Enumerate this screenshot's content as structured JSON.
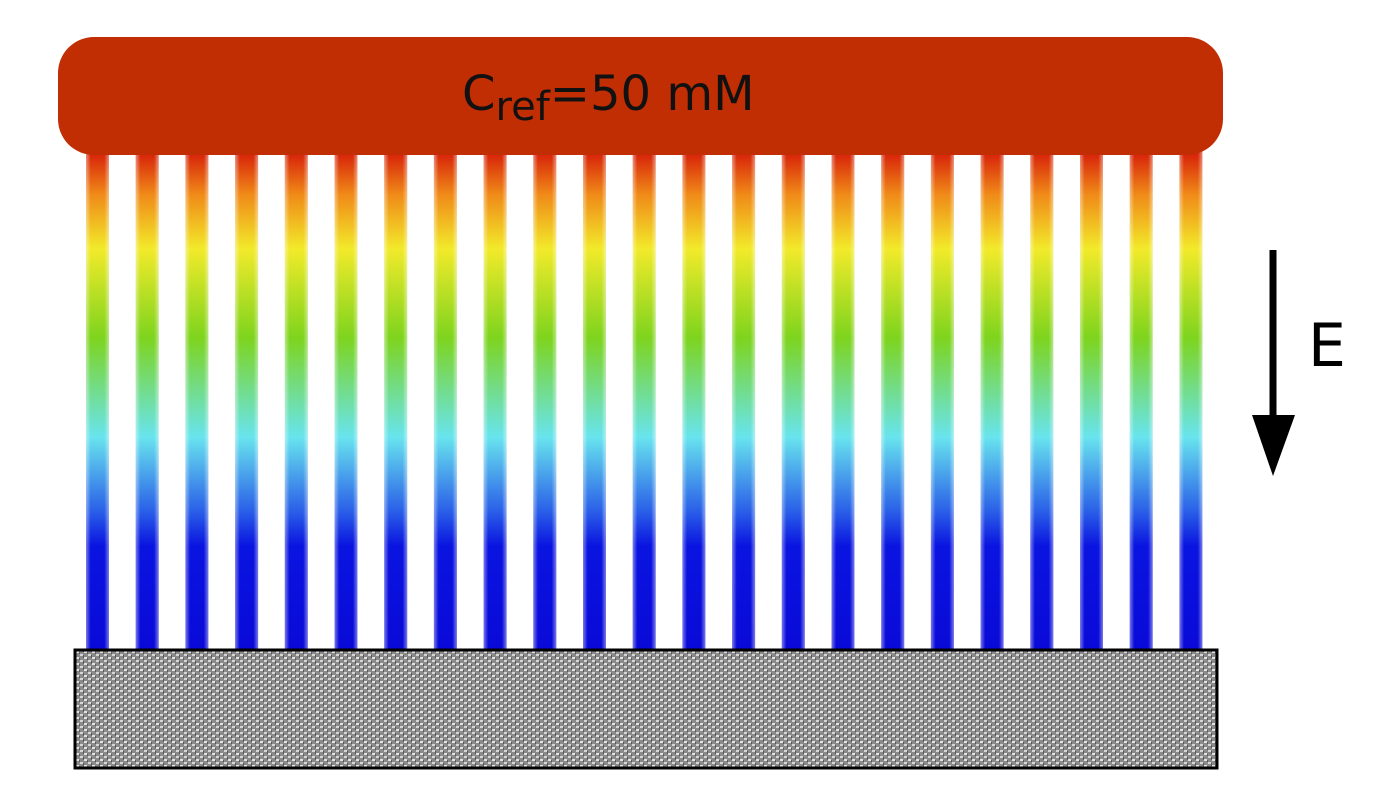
{
  "reservoir": {
    "label": "C",
    "subscript": "ref",
    "value": "=50 mM"
  },
  "field": {
    "label": "E"
  }
}
